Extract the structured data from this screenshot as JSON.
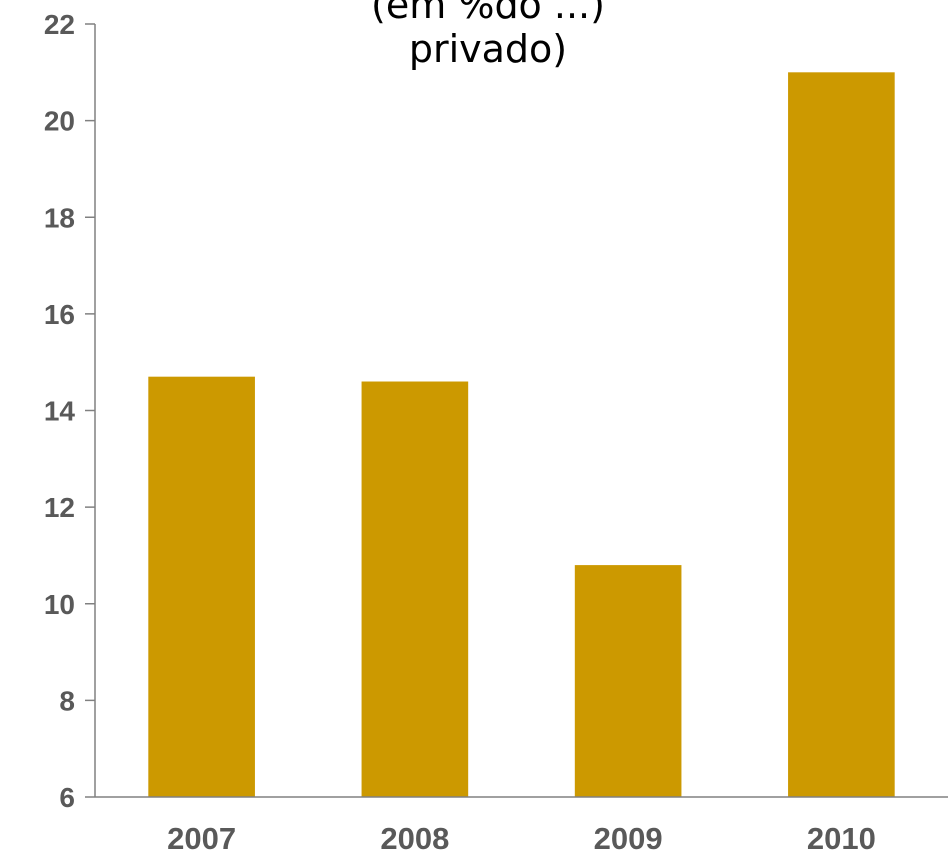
{
  "chart_data": {
    "type": "bar",
    "title_lines": [
      "(em %do ...)",
      "privado)"
    ],
    "categories": [
      "2007",
      "2008",
      "2009",
      "2010"
    ],
    "values": [
      14.7,
      14.6,
      10.8,
      21.0
    ],
    "ylim": [
      6,
      22
    ],
    "yticks": [
      "6",
      "8",
      "10",
      "12",
      "14",
      "16",
      "18",
      "20",
      "22"
    ],
    "xlabel": "",
    "ylabel": "",
    "grid": false,
    "legend": "none",
    "colors": {
      "bar": "#CC9900",
      "axis": "#808080",
      "tick_text": "#595959",
      "title_text": "#000000"
    }
  }
}
